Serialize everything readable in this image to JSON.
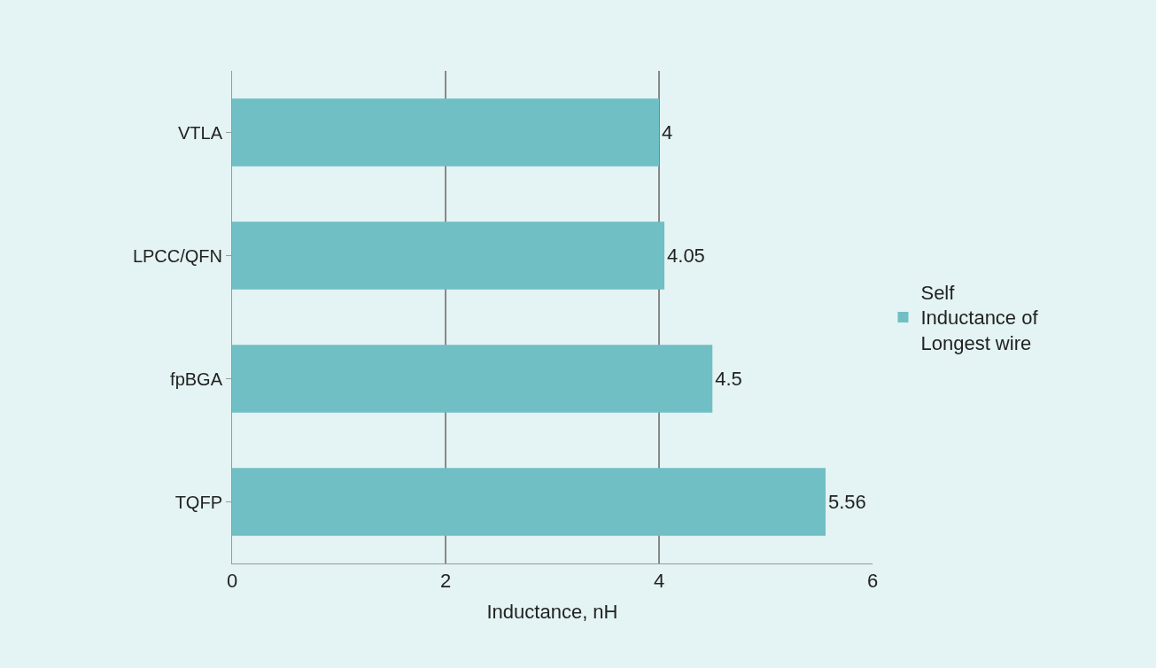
{
  "chart_data": {
    "type": "bar",
    "orientation": "horizontal",
    "xlabel": "Inductance, nH",
    "categories": [
      "VTLA",
      "LPCC/QFN",
      "fpBGA",
      "TQFP"
    ],
    "series": [
      {
        "name": "Self Inductance of Longest wire",
        "color": "#6fbfc4",
        "values": [
          4,
          4.05,
          4.5,
          5.56
        ]
      }
    ],
    "xlim": [
      0,
      6
    ],
    "xticks": [
      0,
      2,
      4,
      6
    ],
    "grid": "x",
    "legend": "right",
    "data_labels": true
  }
}
